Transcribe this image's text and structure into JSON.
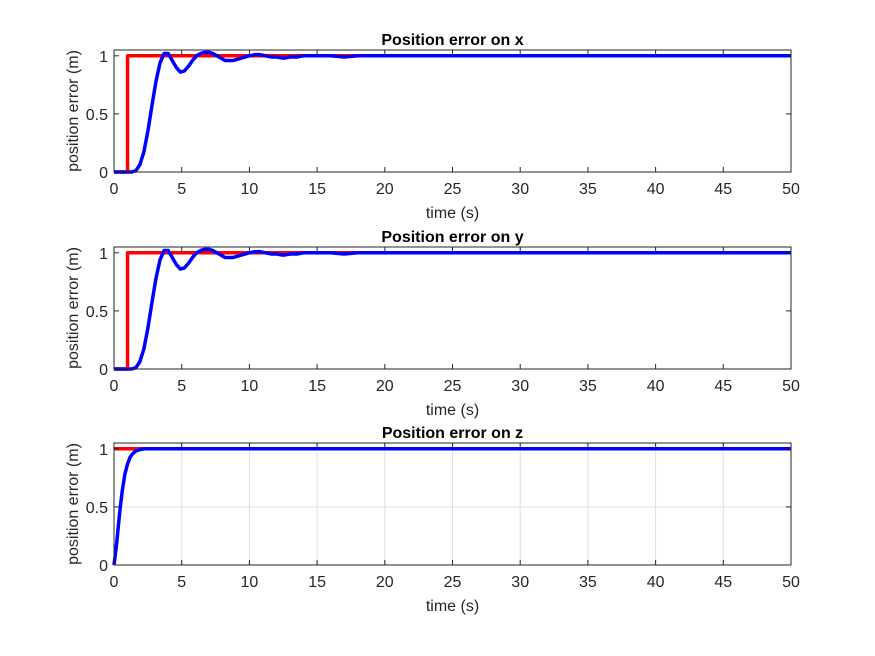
{
  "chart_data": [
    {
      "type": "line",
      "title": "Position error on x",
      "xlabel": "time (s)",
      "ylabel": "position error (m)",
      "xlim": [
        0,
        50
      ],
      "ylim": [
        0,
        1.05
      ],
      "xticks": [
        "0",
        "5",
        "10",
        "15",
        "20",
        "25",
        "30",
        "35",
        "40",
        "45",
        "50"
      ],
      "yticks": [
        "0",
        "0.5",
        "1"
      ],
      "grid": false,
      "series": [
        {
          "color": "#ff0000",
          "x": [
            0,
            1,
            1,
            50
          ],
          "y": [
            0,
            0,
            1,
            1
          ]
        },
        {
          "color": "#0000ff",
          "x": [
            0,
            1.0,
            1.3,
            1.6,
            1.9,
            2.2,
            2.5,
            2.8,
            3.1,
            3.4,
            3.7,
            4.0,
            4.3,
            4.6,
            4.9,
            5.2,
            5.5,
            5.8,
            6.1,
            6.4,
            6.7,
            7.0,
            7.3,
            7.6,
            7.9,
            8.2,
            8.5,
            8.8,
            9.1,
            9.4,
            9.7,
            10.0,
            10.4,
            10.8,
            11.2,
            11.6,
            12.0,
            12.5,
            13.0,
            13.5,
            14.0,
            15.0,
            16.0,
            17.0,
            18.0,
            20.0,
            25.0,
            30.0,
            40.0,
            50.0
          ],
          "y": [
            0,
            0,
            0.0,
            0.01,
            0.06,
            0.17,
            0.35,
            0.57,
            0.78,
            0.94,
            1.02,
            1.02,
            0.96,
            0.9,
            0.86,
            0.87,
            0.91,
            0.96,
            1.0,
            1.02,
            1.03,
            1.03,
            1.02,
            1.0,
            0.98,
            0.96,
            0.96,
            0.96,
            0.97,
            0.98,
            0.99,
            1.0,
            1.01,
            1.01,
            1.0,
            0.99,
            0.99,
            0.98,
            0.99,
            0.99,
            1.0,
            1.0,
            1.0,
            0.99,
            1.0,
            1.0,
            1.0,
            1.0,
            1.0,
            1.0
          ]
        }
      ]
    },
    {
      "type": "line",
      "title": "Position error on y",
      "xlabel": "time (s)",
      "ylabel": "position error (m)",
      "xlim": [
        0,
        50
      ],
      "ylim": [
        0,
        1.05
      ],
      "xticks": [
        "0",
        "5",
        "10",
        "15",
        "20",
        "25",
        "30",
        "35",
        "40",
        "45",
        "50"
      ],
      "yticks": [
        "0",
        "0.5",
        "1"
      ],
      "grid": false,
      "series": [
        {
          "color": "#ff0000",
          "x": [
            0,
            1,
            1,
            50
          ],
          "y": [
            0,
            0,
            1,
            1
          ]
        },
        {
          "color": "#0000ff",
          "x": [
            0,
            1.0,
            1.3,
            1.6,
            1.9,
            2.2,
            2.5,
            2.8,
            3.1,
            3.4,
            3.7,
            4.0,
            4.3,
            4.6,
            4.9,
            5.2,
            5.5,
            5.8,
            6.1,
            6.4,
            6.7,
            7.0,
            7.3,
            7.6,
            7.9,
            8.2,
            8.5,
            8.8,
            9.1,
            9.4,
            9.7,
            10.0,
            10.4,
            10.8,
            11.2,
            11.6,
            12.0,
            12.5,
            13.0,
            13.5,
            14.0,
            15.0,
            16.0,
            17.0,
            18.0,
            20.0,
            25.0,
            30.0,
            40.0,
            50.0
          ],
          "y": [
            0,
            0,
            0.0,
            0.01,
            0.06,
            0.17,
            0.35,
            0.57,
            0.78,
            0.94,
            1.02,
            1.02,
            0.96,
            0.9,
            0.86,
            0.87,
            0.91,
            0.96,
            1.0,
            1.02,
            1.03,
            1.03,
            1.02,
            1.0,
            0.98,
            0.96,
            0.96,
            0.96,
            0.97,
            0.98,
            0.99,
            1.0,
            1.01,
            1.01,
            1.0,
            0.99,
            0.99,
            0.98,
            0.99,
            0.99,
            1.0,
            1.0,
            1.0,
            0.99,
            1.0,
            1.0,
            1.0,
            1.0,
            1.0,
            1.0
          ]
        }
      ]
    },
    {
      "type": "line",
      "title": "Position error on z",
      "xlabel": "time (s)",
      "ylabel": "position error (m)",
      "xlim": [
        0,
        50
      ],
      "ylim": [
        0,
        1.05
      ],
      "xticks": [
        "0",
        "5",
        "10",
        "15",
        "20",
        "25",
        "30",
        "35",
        "40",
        "45",
        "50"
      ],
      "yticks": [
        "0",
        "0.5",
        "1"
      ],
      "grid": true,
      "series": [
        {
          "color": "#ff0000",
          "x": [
            0,
            50
          ],
          "y": [
            1,
            1
          ]
        },
        {
          "color": "#0000ff",
          "x": [
            0,
            0.2,
            0.4,
            0.6,
            0.8,
            1.0,
            1.2,
            1.4,
            1.6,
            1.8,
            2.0,
            2.3,
            2.6,
            3.0,
            3.5,
            4.0,
            5.0,
            6.0,
            8.0,
            10.0,
            15.0,
            20.0,
            30.0,
            40.0,
            50.0
          ],
          "y": [
            0,
            0.19,
            0.43,
            0.63,
            0.78,
            0.87,
            0.93,
            0.96,
            0.98,
            0.99,
            0.995,
            1.0,
            1.0,
            1.0,
            1.0,
            1.0,
            1.0,
            1.0,
            1.0,
            1.0,
            1.0,
            1.0,
            1.0,
            1.0,
            1.0
          ]
        }
      ]
    }
  ]
}
